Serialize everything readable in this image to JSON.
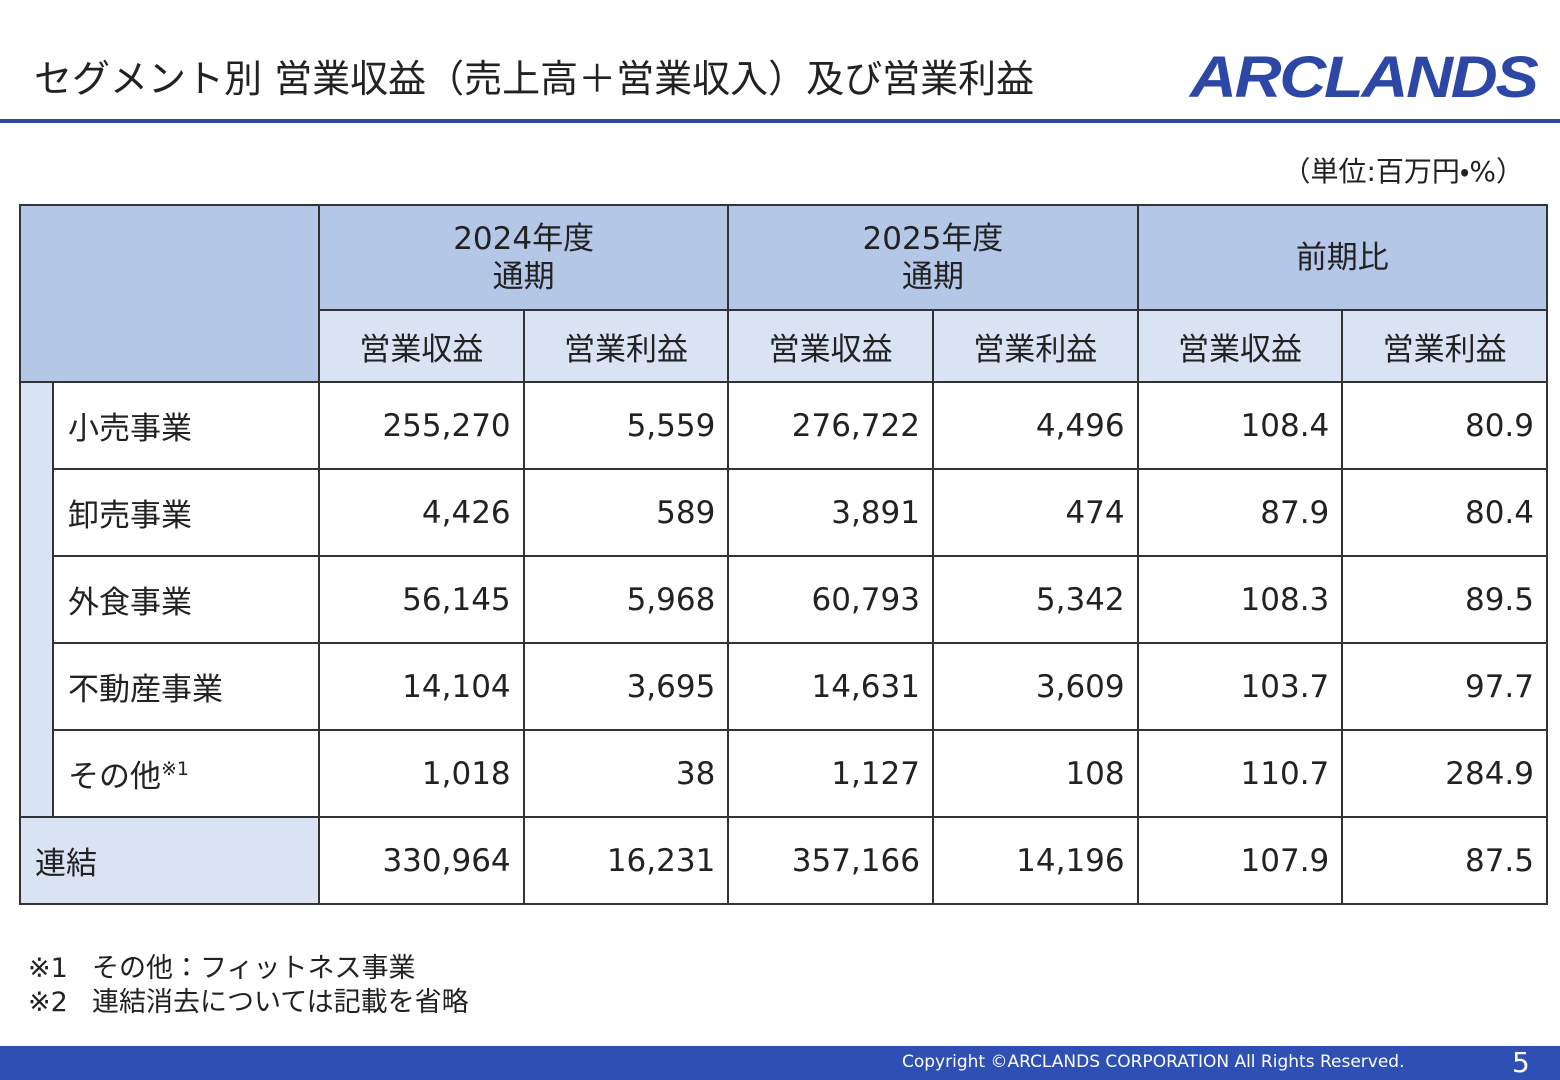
{
  "header": {
    "title": "セグメント別 営業収益（売上高＋営業収入）及び営業利益",
    "logo": "ARCLANDS"
  },
  "unit": "（単位:百万円・%）",
  "table": {
    "periods": [
      {
        "year": "2024年度",
        "term": "通期"
      },
      {
        "year": "2025年度",
        "term": "通期"
      },
      {
        "year": "前期比"
      }
    ],
    "subheaders": [
      "営業収益",
      "営業利益",
      "営業収益",
      "営業利益",
      "営業収益",
      "営業利益"
    ],
    "rows": [
      {
        "label": "小売事業",
        "values": [
          "255,270",
          "5,559",
          "276,722",
          "4,496",
          "108.4",
          "80.9"
        ]
      },
      {
        "label": "卸売事業",
        "values": [
          "4,426",
          "589",
          "3,891",
          "474",
          "87.9",
          "80.4"
        ]
      },
      {
        "label": "外食事業",
        "values": [
          "56,145",
          "5,968",
          "60,793",
          "5,342",
          "108.3",
          "89.5"
        ]
      },
      {
        "label": "不動産事業",
        "values": [
          "14,104",
          "3,695",
          "14,631",
          "3,609",
          "103.7",
          "97.7"
        ]
      },
      {
        "label": "その他",
        "note": "※1",
        "values": [
          "1,018",
          "38",
          "1,127",
          "108",
          "110.7",
          "284.9"
        ]
      }
    ],
    "total": {
      "label": "連結",
      "values": [
        "330,964",
        "16,231",
        "357,166",
        "14,196",
        "107.9",
        "87.5"
      ]
    }
  },
  "footnotes": [
    {
      "mark": "※1",
      "text": "その他：フィットネス事業"
    },
    {
      "mark": "※2",
      "text": "連結消去については記載を省略"
    }
  ],
  "footer": {
    "copyright": "Copyright ©ARCLANDS CORPORATION All Rights Reserved.",
    "page": "5"
  }
}
